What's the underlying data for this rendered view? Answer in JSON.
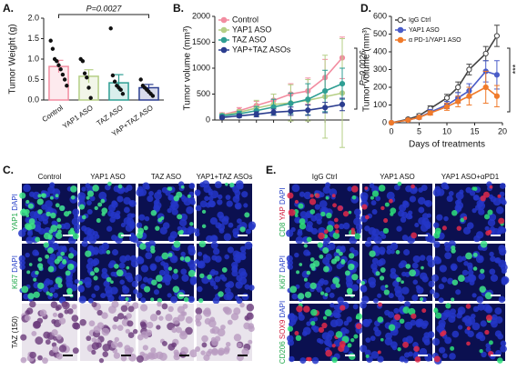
{
  "chart_data": [
    {
      "type": "bar",
      "panel_label": "A.",
      "ylabel": "Tumor Weight (g)",
      "categories": [
        "Control",
        "YAP1 ASO",
        "TAZ ASO",
        "YAP+TAZ ASO"
      ],
      "values": [
        0.82,
        0.58,
        0.42,
        0.3
      ],
      "errors": [
        0.15,
        0.16,
        0.2,
        0.08
      ],
      "colors": [
        "#f28ca0",
        "#b5cf86",
        "#2e9e93",
        "#2b3d8f"
      ],
      "points": [
        [
          1.45,
          1.25,
          1.0,
          0.95,
          0.85,
          0.75,
          0.62,
          0.5,
          0.35
        ],
        [
          1.0,
          0.95,
          0.65,
          0.55,
          0.3,
          0.05
        ],
        [
          1.75,
          0.6,
          0.45,
          0.35,
          0.3,
          0.25,
          0.15
        ],
        [
          0.5,
          0.35,
          0.3,
          0.25,
          0.2,
          0.15,
          0.1
        ]
      ],
      "ylim": [
        0,
        2
      ],
      "yticks": [
        {
          "value": 0,
          "label": "0.0"
        },
        {
          "value": 0.5,
          "label": "0.5"
        },
        {
          "value": 1,
          "label": "1.0"
        },
        {
          "value": 1.5,
          "label": "1.5"
        },
        {
          "value": 2,
          "label": "2.0"
        }
      ],
      "annotation": "P=0.0027"
    },
    {
      "type": "line",
      "panel_label": "B.",
      "ylabel": "Tumor volume (mm³)",
      "categories": [
        null,
        null,
        null,
        null,
        null,
        null,
        null,
        null
      ],
      "series": [
        {
          "name": "Control",
          "color": "#f28ca0",
          "values": [
            100,
            180,
            280,
            380,
            500,
            560,
            820,
            1200
          ],
          "errors": [
            40,
            60,
            80,
            120,
            200,
            250,
            350,
            400
          ]
        },
        {
          "name": "YAP1 ASO",
          "color": "#b5cf86",
          "values": [
            90,
            150,
            230,
            300,
            330,
            380,
            450,
            520
          ],
          "errors": [
            30,
            50,
            150,
            200,
            350,
            400,
            800,
            1050
          ]
        },
        {
          "name": "TAZ ASO",
          "color": "#2e9e93",
          "values": [
            80,
            120,
            180,
            250,
            320,
            400,
            560,
            700
          ],
          "errors": [
            30,
            50,
            80,
            150,
            200,
            300,
            400,
            300
          ]
        },
        {
          "name": "YAP+TAZ ASOs",
          "color": "#2b3d8f",
          "values": [
            50,
            80,
            110,
            150,
            170,
            190,
            240,
            300
          ],
          "errors": [
            20,
            30,
            50,
            60,
            80,
            100,
            100,
            120
          ]
        }
      ],
      "ylim": [
        0,
        2000
      ],
      "yticks": [
        0,
        500,
        1000,
        1500,
        2000
      ],
      "legend": "upper left",
      "annotation": "P=0.0026"
    },
    {
      "type": "line",
      "panel_label": "D.",
      "ylabel": "Tumor volume (mm³)",
      "xlabel": "Days of treatments",
      "x": [
        0,
        3,
        5,
        7,
        10,
        12,
        14,
        17,
        19
      ],
      "series": [
        {
          "name": "IgG Ctrl",
          "color": "#444444",
          "filled": false,
          "values": [
            0,
            20,
            40,
            80,
            140,
            200,
            300,
            390,
            490
          ],
          "errors": [
            0,
            5,
            10,
            15,
            20,
            30,
            30,
            40,
            60
          ]
        },
        {
          "name": "YAP1 ASO",
          "color": "#4a5cc8",
          "filled": true,
          "values": [
            0,
            15,
            30,
            60,
            100,
            140,
            180,
            290,
            270
          ],
          "errors": [
            0,
            5,
            10,
            15,
            20,
            30,
            40,
            60,
            80
          ]
        },
        {
          "name": "α PD-1/YAP1 ASO",
          "color": "#f07a2a",
          "filled": true,
          "values": [
            0,
            15,
            30,
            55,
            90,
            120,
            150,
            200,
            150
          ],
          "errors": [
            0,
            5,
            8,
            12,
            20,
            30,
            50,
            90,
            60
          ]
        }
      ],
      "xlim": [
        0,
        20
      ],
      "xticks": [
        0,
        5,
        10,
        15,
        20
      ],
      "ylim": [
        0,
        600
      ],
      "yticks": [
        0,
        100,
        200,
        300,
        400,
        500,
        600
      ],
      "legend": "upper left",
      "annotation": "***"
    }
  ],
  "figure_c": {
    "panel_label": "C.",
    "columns": [
      "Control",
      "YAP1 ASO",
      "TAZ ASO",
      "YAP1+TAZ ASOs"
    ],
    "rows": [
      [
        "YAP1",
        "DAPI"
      ],
      [
        "Ki67",
        "DAPI"
      ],
      [
        "TAZ (150)"
      ]
    ]
  },
  "figure_e": {
    "panel_label": "E.",
    "columns": [
      "IgG Ctrl",
      "YAP1 ASO",
      "YAP1 ASO+αPD1"
    ],
    "rows": [
      [
        "CD8",
        "YAP",
        "DAPI"
      ],
      [
        "Ki67",
        "DAPI"
      ],
      [
        "CD206",
        "SOX9",
        "DAPI"
      ]
    ]
  }
}
